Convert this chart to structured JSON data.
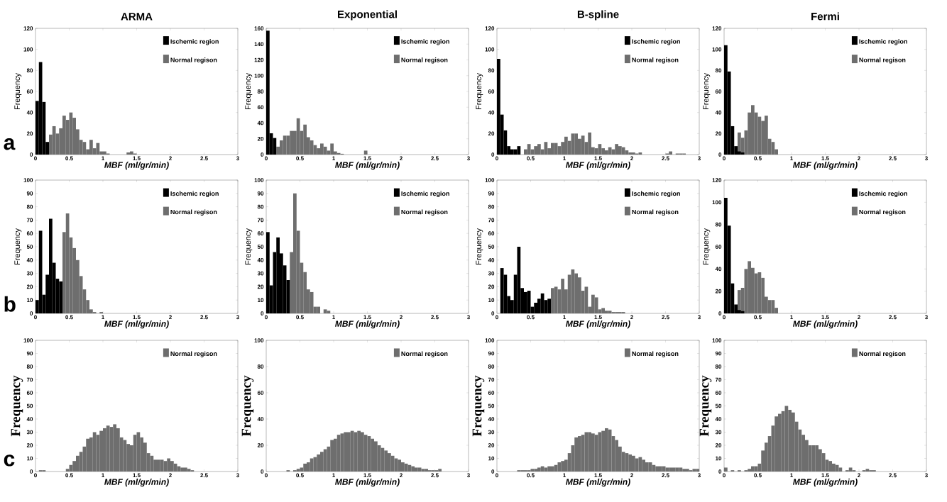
{
  "chart_data": [
    {
      "type": "histogram",
      "title": "ARMA",
      "xlabel": "MBF (ml/gr/min)",
      "ylabel": "Frequency",
      "annotations": [
        "a"
      ],
      "xlim": [
        0,
        3
      ],
      "xticks": [
        0,
        0.5,
        1,
        1.5,
        2,
        2.5,
        3
      ],
      "ylim": [
        0,
        120
      ],
      "yticks": [
        0,
        20,
        40,
        60,
        80,
        100,
        120
      ],
      "legend": "top right",
      "bins": [
        0,
        0.05,
        0.1,
        0.15,
        0.2,
        0.25,
        0.3,
        0.35,
        0.4,
        0.45,
        0.5,
        0.55,
        0.6,
        0.65,
        0.7,
        0.75,
        0.8,
        0.85,
        0.9,
        0.95,
        1,
        1.05,
        1.1,
        1.15,
        1.2,
        1.25,
        1.3,
        1.35,
        1.4,
        1.45,
        1.5
      ],
      "series": [
        {
          "name": "Ischemic region",
          "color": "#000000",
          "values": [
            51,
            88,
            50,
            12,
            0,
            0,
            0,
            0,
            0,
            0,
            0,
            0,
            0,
            0,
            0,
            0,
            0,
            0,
            0,
            0,
            0,
            0,
            0,
            0,
            0,
            0,
            0,
            0,
            0,
            0
          ]
        },
        {
          "name": "Normal regison",
          "color": "#6e6e6e",
          "values": [
            0,
            0,
            0,
            0,
            19,
            27,
            20,
            25,
            37,
            33,
            40,
            35,
            24,
            14,
            12,
            5,
            14,
            6,
            11,
            3,
            3,
            1,
            0,
            0,
            0,
            0,
            0,
            2,
            3,
            1
          ]
        }
      ]
    },
    {
      "type": "histogram",
      "title": "Exponential",
      "xlabel": "MBF (ml/gr/min)",
      "ylabel": "Frequency",
      "xlim": [
        0,
        3
      ],
      "xticks": [
        0,
        0.5,
        1,
        1.5,
        2,
        2.5,
        3
      ],
      "ylim": [
        0,
        160
      ],
      "yticks": [
        0,
        20,
        40,
        60,
        80,
        100,
        120,
        140,
        160
      ],
      "legend": "top right",
      "bins": [
        0,
        0.05,
        0.1,
        0.15,
        0.2,
        0.25,
        0.3,
        0.35,
        0.4,
        0.45,
        0.5,
        0.55,
        0.6,
        0.65,
        0.7,
        0.75,
        0.8,
        0.85,
        0.9,
        0.95,
        1,
        1.05,
        1.1,
        1.15,
        1.2,
        1.25,
        1.3,
        1.35,
        1.4,
        1.45,
        1.5,
        1.55
      ],
      "series": [
        {
          "name": "Ischemic region",
          "color": "#000000",
          "values": [
            157,
            27,
            21,
            0,
            0,
            0,
            0,
            0,
            0,
            0,
            0,
            0,
            0,
            0,
            0,
            0,
            0,
            0,
            0,
            0,
            0,
            0,
            0,
            0,
            0,
            0,
            0,
            0,
            0,
            0,
            0
          ]
        },
        {
          "name": "Normal regison",
          "color": "#6e6e6e",
          "values": [
            0,
            0,
            0,
            10,
            18,
            24,
            24,
            30,
            30,
            46,
            30,
            38,
            22,
            18,
            12,
            8,
            14,
            10,
            5,
            14,
            4,
            2,
            1,
            0,
            0,
            0,
            0,
            0,
            0,
            5,
            0
          ]
        }
      ]
    },
    {
      "type": "histogram",
      "title": "B-spline",
      "xlabel": "MBF (ml/gr/min)",
      "ylabel": "Frequency",
      "xlim": [
        0,
        3
      ],
      "xticks": [
        0,
        0.5,
        1,
        1.5,
        2,
        2.5,
        3
      ],
      "ylim": [
        0,
        120
      ],
      "yticks": [
        0,
        20,
        40,
        60,
        80,
        100,
        120
      ],
      "legend": "top right",
      "bins": [
        0,
        0.05,
        0.1,
        0.15,
        0.2,
        0.25,
        0.3,
        0.35,
        0.4,
        0.45,
        0.5,
        0.55,
        0.6,
        0.65,
        0.7,
        0.75,
        0.8,
        0.85,
        0.9,
        0.95,
        1,
        1.05,
        1.1,
        1.15,
        1.2,
        1.25,
        1.3,
        1.35,
        1.4,
        1.45,
        1.5,
        1.55,
        1.6,
        1.65,
        1.7,
        1.75,
        1.8,
        1.85,
        1.9,
        1.95,
        2,
        2.05,
        2.1,
        2.15,
        2.2,
        2.25,
        2.3,
        2.35,
        2.4,
        2.45,
        2.5,
        2.55,
        2.6,
        2.65,
        2.7,
        2.75,
        2.8
      ],
      "series": [
        {
          "name": "Ischemic region",
          "color": "#000000",
          "values": [
            91,
            38,
            23,
            8,
            5,
            5,
            8,
            0,
            0,
            0,
            0,
            0,
            0,
            0,
            0,
            0,
            0,
            0,
            0,
            0,
            0,
            0,
            0,
            0,
            0,
            0,
            0,
            0,
            0,
            0,
            0,
            0,
            0,
            0,
            0,
            0,
            0,
            0,
            0,
            0,
            0,
            0,
            0,
            0,
            0,
            0,
            0,
            0,
            0,
            0,
            0,
            0,
            0,
            0,
            0,
            0
          ]
        },
        {
          "name": "Normal regison",
          "color": "#6e6e6e",
          "values": [
            0,
            0,
            0,
            0,
            0,
            null,
            0,
            0,
            5,
            10,
            5,
            8,
            10,
            5,
            12,
            6,
            11,
            11,
            8,
            12,
            17,
            13,
            20,
            20,
            15,
            18,
            12,
            21,
            7,
            6,
            10,
            6,
            4,
            7,
            5,
            10,
            8,
            7,
            4,
            2,
            2,
            1,
            2,
            0,
            0,
            0,
            0,
            0,
            0,
            0,
            1,
            3,
            0,
            1,
            1,
            1
          ]
        }
      ]
    },
    {
      "type": "histogram",
      "title": "Fermi",
      "xlabel": "MBF (ml/gr/min)",
      "ylabel": "Frequency",
      "xlim": [
        0,
        3
      ],
      "xticks": [
        0,
        0.5,
        1,
        1.5,
        2,
        2.5,
        3
      ],
      "ylim": [
        0,
        120
      ],
      "yticks": [
        0,
        20,
        40,
        60,
        80,
        100,
        120
      ],
      "legend": "top right",
      "bins": [
        0,
        0.05,
        0.1,
        0.15,
        0.2,
        0.25,
        0.3,
        0.35,
        0.4,
        0.45,
        0.5,
        0.55,
        0.6,
        0.65,
        0.7,
        0.75,
        0.8
      ],
      "series": [
        {
          "name": "Ischemic region",
          "color": "#000000",
          "values": [
            104,
            79,
            27,
            8,
            3,
            2,
            0,
            0,
            0,
            0,
            0,
            0,
            0,
            0,
            0,
            0
          ]
        },
        {
          "name": "Normal regison",
          "color": "#6e6e6e",
          "values": [
            0,
            0,
            0,
            null,
            21,
            16,
            23,
            40,
            47,
            40,
            36,
            32,
            37,
            15,
            12,
            5
          ]
        }
      ]
    },
    {
      "type": "histogram",
      "xlabel": "MBF (ml/gr/min)",
      "ylabel": "Frequency",
      "annotations": [
        "b"
      ],
      "xlim": [
        0,
        3
      ],
      "xticks": [
        0,
        0.5,
        1,
        1.5,
        2,
        2.5,
        3
      ],
      "ylim": [
        0,
        100
      ],
      "yticks": [
        0,
        10,
        20,
        30,
        40,
        50,
        60,
        70,
        80,
        90,
        100
      ],
      "legend": "top right",
      "bins": [
        0,
        0.05,
        0.1,
        0.15,
        0.2,
        0.25,
        0.3,
        0.35,
        0.4,
        0.45,
        0.5,
        0.55,
        0.6,
        0.65,
        0.7,
        0.75,
        0.8,
        0.85,
        0.9,
        0.95,
        1
      ],
      "series": [
        {
          "name": "Ischemic region",
          "color": "#000000",
          "values": [
            10,
            62,
            14,
            29,
            71,
            38,
            26,
            24,
            0,
            0,
            0,
            0,
            0,
            0,
            0,
            0,
            0,
            0,
            0,
            0
          ]
        },
        {
          "name": "Normal regison",
          "color": "#6e6e6e",
          "values": [
            0,
            0,
            0,
            0,
            0,
            0,
            0,
            0,
            61,
            75,
            57,
            49,
            40,
            28,
            18,
            10,
            3,
            1,
            0,
            1
          ]
        }
      ]
    },
    {
      "type": "histogram",
      "xlabel": "MBF (ml/gr/min)",
      "ylabel": "Frequency",
      "xlim": [
        0,
        3
      ],
      "xticks": [
        0,
        0.5,
        1,
        1.5,
        2,
        2.5,
        3
      ],
      "ylim": [
        0,
        100
      ],
      "yticks": [
        0,
        10,
        20,
        30,
        40,
        50,
        60,
        70,
        80,
        90,
        100
      ],
      "legend": "top right",
      "bins": [
        0,
        0.05,
        0.1,
        0.15,
        0.2,
        0.25,
        0.3,
        0.35,
        0.4,
        0.45,
        0.5,
        0.55,
        0.6,
        0.65,
        0.7,
        0.75,
        0.8,
        0.85,
        0.9,
        0.95,
        1
      ],
      "series": [
        {
          "name": "Ischemic region",
          "color": "#000000",
          "values": [
            61,
            21,
            46,
            57,
            45,
            36,
            25,
            0,
            0,
            0,
            0,
            0,
            0,
            0,
            0,
            0,
            0,
            0,
            0,
            0
          ]
        },
        {
          "name": "Normal regison",
          "color": "#6e6e6e",
          "values": [
            0,
            0,
            0,
            0,
            0,
            0,
            0,
            46,
            90,
            62,
            38,
            31,
            18,
            16,
            5,
            5,
            0,
            3,
            2,
            0
          ]
        }
      ]
    },
    {
      "type": "histogram",
      "xlabel": "MBF (ml/gr/min)",
      "ylabel": "Frequency",
      "xlim": [
        0,
        3
      ],
      "xticks": [
        0,
        0.5,
        1,
        1.5,
        2,
        2.5,
        3
      ],
      "ylim": [
        0,
        100
      ],
      "yticks": [
        0,
        10,
        20,
        30,
        40,
        50,
        60,
        70,
        80,
        90,
        100
      ],
      "legend": "top right",
      "bins": [
        0,
        0.05,
        0.1,
        0.15,
        0.2,
        0.25,
        0.3,
        0.35,
        0.4,
        0.45,
        0.5,
        0.55,
        0.6,
        0.65,
        0.7,
        0.75,
        0.8,
        0.85,
        0.9,
        0.95,
        1,
        1.05,
        1.1,
        1.15,
        1.2,
        1.25,
        1.3,
        1.35,
        1.4,
        1.45,
        1.5,
        1.55,
        1.6,
        1.65,
        1.7,
        1.75,
        1.8,
        1.85,
        1.9
      ],
      "series": [
        {
          "name": "Ischemic region",
          "color": "#000000",
          "values": [
            0,
            34,
            29,
            13,
            10,
            29,
            50,
            19,
            16,
            17,
            5,
            8,
            11,
            15,
            10,
            11,
            0,
            0,
            0,
            0,
            0,
            0,
            0,
            0,
            0,
            0,
            0,
            0,
            0,
            0,
            0,
            0,
            0,
            0,
            0,
            0,
            0,
            0
          ]
        },
        {
          "name": "Normal regison",
          "color": "#6e6e6e",
          "values": [
            0,
            0,
            0,
            0,
            0,
            0,
            0,
            0,
            0,
            0,
            0,
            0,
            0,
            0,
            0,
            0,
            19,
            20,
            18,
            26,
            18,
            29,
            33,
            30,
            27,
            17,
            20,
            5,
            14,
            12,
            3,
            4,
            2,
            2,
            1,
            1,
            1,
            1
          ]
        }
      ]
    },
    {
      "type": "histogram",
      "xlabel": "MBF (ml/gr/min)",
      "ylabel": "Frequency",
      "xlim": [
        0,
        3
      ],
      "xticks": [
        0,
        0.5,
        1,
        1.5,
        2,
        2.5,
        3
      ],
      "ylim": [
        0,
        120
      ],
      "yticks": [
        0,
        20,
        40,
        60,
        80,
        100,
        120
      ],
      "legend": "top right",
      "bins": [
        0,
        0.05,
        0.1,
        0.15,
        0.2,
        0.25,
        0.3,
        0.35,
        0.4,
        0.45,
        0.5,
        0.55,
        0.6,
        0.65,
        0.7,
        0.75,
        0.8
      ],
      "series": [
        {
          "name": "Ischemic region",
          "color": "#000000",
          "values": [
            104,
            79,
            27,
            8,
            3,
            2,
            0,
            0,
            0,
            0,
            0,
            0,
            0,
            0,
            0,
            0
          ]
        },
        {
          "name": "Normal regison",
          "color": "#6e6e6e",
          "values": [
            0,
            0,
            0,
            null,
            21,
            23,
            40,
            47,
            41,
            36,
            37,
            32,
            15,
            12,
            12,
            5
          ]
        }
      ]
    },
    {
      "type": "histogram",
      "xlabel": "MBF (ml/gr/min)",
      "ylabel": "Frequency",
      "annotations": [
        "c"
      ],
      "xlim": [
        0,
        3
      ],
      "xticks": [
        0,
        0.5,
        1,
        1.5,
        2,
        2.5,
        3
      ],
      "ylim": [
        0,
        100
      ],
      "yticks": [
        0,
        10,
        20,
        30,
        40,
        50,
        60,
        70,
        80,
        90,
        100
      ],
      "legend": "top right",
      "bins": [
        0,
        0.05,
        0.1,
        0.15,
        0.2,
        0.25,
        0.3,
        0.35,
        0.4,
        0.45,
        0.5,
        0.55,
        0.6,
        0.65,
        0.7,
        0.75,
        0.8,
        0.85,
        0.9,
        0.95,
        1,
        1.05,
        1.1,
        1.15,
        1.2,
        1.25,
        1.3,
        1.35,
        1.4,
        1.45,
        1.5,
        1.55,
        1.6,
        1.65,
        1.7,
        1.75,
        1.8,
        1.85,
        1.9,
        1.95,
        2,
        2.05,
        2.1,
        2.15,
        2.2,
        2.25,
        2.3,
        2.35
      ],
      "series": [
        {
          "name": "Normal regison",
          "color": "#6e6e6e",
          "values": [
            0,
            1,
            1,
            0,
            0,
            0,
            0,
            0,
            0,
            2,
            5,
            8,
            12,
            15,
            19,
            25,
            26,
            30,
            28,
            31,
            33,
            35,
            34,
            36,
            33,
            26,
            24,
            21,
            20,
            28,
            30,
            26,
            22,
            14,
            12,
            9,
            9,
            9,
            8,
            10,
            8,
            6,
            4,
            3,
            3,
            2,
            1
          ]
        }
      ]
    },
    {
      "type": "histogram",
      "xlabel": "MBF (ml/gr/min)",
      "ylabel": "Frequency",
      "xlim": [
        0,
        3
      ],
      "xticks": [
        0,
        0.5,
        1,
        1.5,
        2,
        2.5,
        3
      ],
      "ylim": [
        0,
        100
      ],
      "yticks": [
        0,
        20,
        40,
        60,
        80,
        100
      ],
      "legend": "top right",
      "bins": [
        0.3,
        0.35,
        0.4,
        0.45,
        0.5,
        0.55,
        0.6,
        0.65,
        0.7,
        0.75,
        0.8,
        0.85,
        0.9,
        0.95,
        1,
        1.05,
        1.1,
        1.15,
        1.2,
        1.25,
        1.3,
        1.35,
        1.4,
        1.45,
        1.5,
        1.55,
        1.6,
        1.65,
        1.7,
        1.75,
        1.8,
        1.85,
        1.9,
        1.95,
        2,
        2.05,
        2.1,
        2.15,
        2.2,
        2.25,
        2.3,
        2.35,
        2.4,
        2.45,
        2.5,
        2.55,
        2.6
      ],
      "series": [
        {
          "name": "Normal regison",
          "color": "#6e6e6e",
          "values": [
            1,
            0,
            1,
            2,
            3,
            6,
            7,
            10,
            11,
            13,
            15,
            17,
            19,
            24,
            25,
            28,
            29,
            30,
            30,
            31,
            30,
            31,
            30,
            28,
            27,
            25,
            23,
            20,
            18,
            16,
            14,
            12,
            10,
            9,
            7,
            6,
            5,
            4,
            3,
            3,
            2,
            2,
            1,
            1,
            1,
            2
          ]
        }
      ]
    },
    {
      "type": "histogram",
      "xlabel": "MBF (ml/gr/min)",
      "ylabel": "Frequency",
      "xlim": [
        0,
        3
      ],
      "xticks": [
        0,
        0.5,
        1,
        1.5,
        2,
        2.5,
        3
      ],
      "ylim": [
        0,
        100
      ],
      "yticks": [
        0,
        10,
        20,
        30,
        40,
        50,
        60,
        70,
        80,
        90,
        100
      ],
      "legend": "top right",
      "bins": [
        0.3,
        0.35,
        0.4,
        0.45,
        0.5,
        0.55,
        0.6,
        0.65,
        0.7,
        0.75,
        0.8,
        0.85,
        0.9,
        0.95,
        1,
        1.05,
        1.1,
        1.15,
        1.2,
        1.25,
        1.3,
        1.35,
        1.4,
        1.45,
        1.5,
        1.55,
        1.6,
        1.65,
        1.7,
        1.75,
        1.8,
        1.85,
        1.9,
        1.95,
        2,
        2.05,
        2.1,
        2.15,
        2.2,
        2.25,
        2.3,
        2.35,
        2.4,
        2.45,
        2.5,
        2.55,
        2.6,
        2.65,
        2.7,
        2.75,
        2.8,
        2.85,
        2.9,
        2.95,
        3
      ],
      "series": [
        {
          "name": "Normal regison",
          "color": "#6e6e6e",
          "values": [
            1,
            1,
            1,
            1,
            2,
            2,
            3,
            4,
            3,
            4,
            4,
            5,
            7,
            8,
            9,
            14,
            20,
            26,
            27,
            28,
            30,
            30,
            29,
            28,
            30,
            31,
            33,
            32,
            27,
            24,
            19,
            15,
            14,
            13,
            12,
            10,
            11,
            9,
            7,
            7,
            5,
            4,
            4,
            4,
            3,
            3,
            3,
            3,
            3,
            2,
            2,
            1,
            2,
            2
          ]
        }
      ]
    },
    {
      "type": "histogram",
      "xlabel": "MBF (ml/gr/min)",
      "ylabel": "Frequency",
      "xlim": [
        0,
        3
      ],
      "xticks": [
        0,
        0.5,
        1,
        1.5,
        2,
        2.5,
        3
      ],
      "ylim": [
        0,
        100
      ],
      "yticks": [
        0,
        10,
        20,
        30,
        40,
        50,
        60,
        70,
        80,
        90,
        100
      ],
      "legend": "top right",
      "bins": [
        0,
        0.05,
        0.1,
        0.15,
        0.2,
        0.25,
        0.3,
        0.35,
        0.4,
        0.45,
        0.5,
        0.55,
        0.6,
        0.65,
        0.7,
        0.75,
        0.8,
        0.85,
        0.9,
        0.95,
        1,
        1.05,
        1.1,
        1.15,
        1.2,
        1.25,
        1.3,
        1.35,
        1.4,
        1.45,
        1.5,
        1.55,
        1.6,
        1.65,
        1.7,
        1.75,
        1.8,
        1.85,
        1.9,
        1.95,
        2,
        2.05,
        2.1,
        2.15,
        2.2,
        2.25
      ],
      "series": [
        {
          "name": "Normal regison",
          "color": "#6e6e6e",
          "values": [
            3,
            0,
            1,
            0,
            1,
            0,
            1,
            2,
            4,
            4,
            6,
            16,
            22,
            27,
            35,
            42,
            44,
            46,
            50,
            47,
            45,
            38,
            32,
            28,
            24,
            20,
            20,
            20,
            17,
            14,
            9,
            8,
            6,
            5,
            3,
            0,
            1,
            3,
            1,
            0,
            0,
            1,
            2,
            1,
            1
          ]
        }
      ]
    }
  ]
}
